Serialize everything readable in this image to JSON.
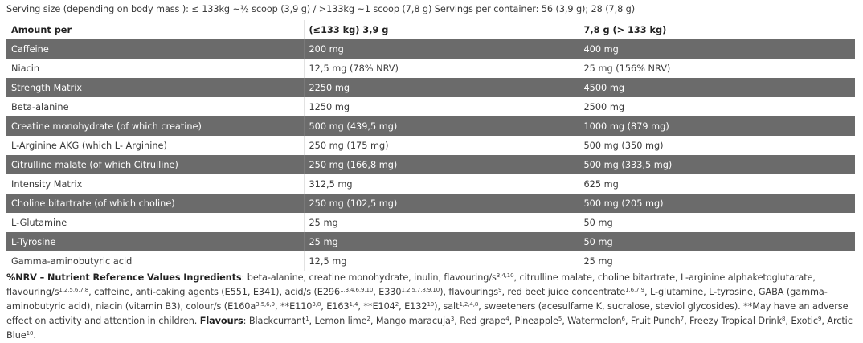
{
  "serving_text": "Serving size (depending on body mass ): ≤ 133kg ~½ scoop (3,9 g) / >133kg ~1 scoop (7,8 g) Servings per container: 56 (3,9 g); 28 (7,8 g)",
  "table": {
    "header": [
      "Amount per",
      "(≤133 kg) 3,9 g",
      "7,8 g (> 133 kg)"
    ],
    "rows": [
      {
        "dark": true,
        "cells": [
          "Caffeine",
          "200 mg",
          "400 mg"
        ]
      },
      {
        "dark": false,
        "cells": [
          "Niacin",
          "12,5 mg (78% NRV)",
          "25 mg (156% NRV)"
        ]
      },
      {
        "dark": true,
        "cells": [
          "Strength Matrix",
          "2250 mg",
          "4500 mg"
        ]
      },
      {
        "dark": false,
        "cells": [
          "Beta-alanine",
          "1250 mg",
          "2500 mg"
        ]
      },
      {
        "dark": true,
        "cells": [
          "Creatine monohydrate (of which creatine)",
          "500 mg (439,5 mg)",
          "1000 mg (879 mg)"
        ]
      },
      {
        "dark": false,
        "cells": [
          "L-Arginine AKG (which L- Arginine)",
          "250 mg (175 mg)",
          "500 mg (350 mg)"
        ]
      },
      {
        "dark": true,
        "cells": [
          "Citrulline malate (of which Citrulline)",
          "250 mg (166,8 mg)",
          "500 mg (333,5 mg)"
        ]
      },
      {
        "dark": false,
        "cells": [
          "Intensity Matrix",
          "312,5 mg",
          "625 mg"
        ]
      },
      {
        "dark": true,
        "cells": [
          "Choline bitartrate (of which choline)",
          "250 mg (102,5 mg)",
          "500 mg (205 mg)"
        ]
      },
      {
        "dark": false,
        "cells": [
          "L-Glutamine",
          "25 mg",
          "50 mg"
        ]
      },
      {
        "dark": true,
        "cells": [
          "L-Tyrosine",
          "25 mg",
          "50 mg"
        ]
      },
      {
        "dark": false,
        "cells": [
          "Gamma-aminobutyric acid",
          "12,5 mg",
          "25 mg"
        ]
      }
    ]
  },
  "ingredients": [
    {
      "t": "%NRV – Nutrient Reference Values Ingredients",
      "b": true
    },
    {
      "t": ": beta-alanine, creatine monohydrate, inulin, flavouring/s"
    },
    {
      "t": "3,4,10",
      "sup": true
    },
    {
      "t": ", citrulline malate, choline bitartrate, L-arginine alphaketoglutarate, flavouring/s"
    },
    {
      "t": "1,2,5,6,7,8",
      "sup": true
    },
    {
      "t": ", caffeine, anti-caking agents (E551, E341), acid/s (E296"
    },
    {
      "t": "1,3,4,6,9,10",
      "sup": true
    },
    {
      "t": ", E330"
    },
    {
      "t": "1,2,5,7,8,9,10",
      "sup": true
    },
    {
      "t": "), flavourings"
    },
    {
      "t": "9",
      "sup": true
    },
    {
      "t": ", red beet juice concentrate"
    },
    {
      "t": "1,6,7,9",
      "sup": true
    },
    {
      "t": ", L-glutamine, L-tyrosine, GABA (gamma-aminobutyric acid), niacin (vitamin B3), colour/s (E160a"
    },
    {
      "t": "3,5,6,9",
      "sup": true
    },
    {
      "t": ", **E110"
    },
    {
      "t": "3,8",
      "sup": true
    },
    {
      "t": ", E163"
    },
    {
      "t": "1,4",
      "sup": true
    },
    {
      "t": ", **E104"
    },
    {
      "t": "2",
      "sup": true
    },
    {
      "t": ", E132"
    },
    {
      "t": "10",
      "sup": true
    },
    {
      "t": "), salt"
    },
    {
      "t": "1,2,4,8",
      "sup": true
    },
    {
      "t": ", sweeteners (acesulfame K, sucralose, steviol glycosides). **May have an adverse effect on activity and attention in children. "
    },
    {
      "t": "Flavours",
      "b": true
    },
    {
      "t": ": Blackcurrant"
    },
    {
      "t": "1",
      "sup": true
    },
    {
      "t": ", Lemon lime"
    },
    {
      "t": "2",
      "sup": true
    },
    {
      "t": ", Mango maracuja"
    },
    {
      "t": "3",
      "sup": true
    },
    {
      "t": ", Red grape"
    },
    {
      "t": "4",
      "sup": true
    },
    {
      "t": ", Pineapple"
    },
    {
      "t": "5",
      "sup": true
    },
    {
      "t": ", Watermelon"
    },
    {
      "t": "6",
      "sup": true
    },
    {
      "t": ", Fruit Punch"
    },
    {
      "t": "7",
      "sup": true
    },
    {
      "t": ", Freezy Tropical Drink"
    },
    {
      "t": "8",
      "sup": true
    },
    {
      "t": ", Exotic"
    },
    {
      "t": "9",
      "sup": true
    },
    {
      "t": ", Arctic Blue"
    },
    {
      "t": "10",
      "sup": true
    },
    {
      "t": "."
    }
  ],
  "colors": {
    "dark_row": "#6b6b6b",
    "text": "#3a3a3a"
  }
}
